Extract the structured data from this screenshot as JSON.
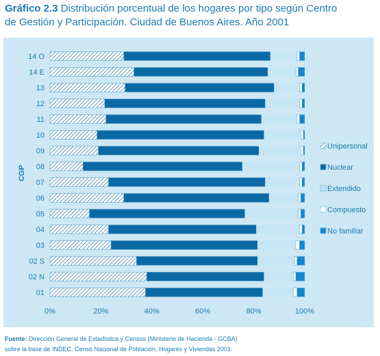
{
  "title": {
    "prefix": "Gráfico 2.3",
    "line1_rest": "Distribución porcentual de los hogares por tipo según Centro",
    "line2": "de Gestión y Participación. Ciudad de Buenos Aires. Año 2001"
  },
  "source": {
    "label": "Fuente:",
    "line1": "Dirección General de Estadística y Censos (Ministerio de Hacienda - GCBA)",
    "line2": "sobre la base de INDEC. Censo Nacional de Población, Hogares y Viviendas 2001."
  },
  "colors": {
    "text": "#1a7ab0",
    "panel": "#cde8f4",
    "unipersonal_stripe": "#1f6fa3",
    "nuclear": "#0b6aa6",
    "extendido": "#c6e6f5",
    "compuesto": "#ffffff",
    "no_familiar": "#1587d0"
  },
  "chart_data": {
    "type": "bar",
    "orientation": "horizontal",
    "stacked": true,
    "percent": true,
    "ylabel": "CGP",
    "xlabel": "",
    "xlim": [
      0,
      100
    ],
    "x_ticks": [
      "0%",
      "20%",
      "40%",
      "60%",
      "80%",
      "100%"
    ],
    "legend_position": "right",
    "categories": [
      "14 O",
      "14 E",
      "13",
      "12",
      "11",
      "10",
      "09",
      "08",
      "07",
      "06",
      "05",
      "04",
      "03",
      "02 S",
      "02 N",
      "01"
    ],
    "series": [
      {
        "name": "Unipersonal",
        "values": [
          29,
          33,
          29.5,
          21.5,
          22,
          18.5,
          19,
          13,
          23,
          29,
          15.5,
          23,
          24,
          34,
          38,
          37.5
        ]
      },
      {
        "name": "Nuclear",
        "values": [
          57.5,
          52.5,
          58.5,
          63,
          61,
          65.5,
          63,
          62.5,
          61.5,
          57,
          61,
          58,
          57.5,
          47.5,
          46,
          46
        ]
      },
      {
        "name": "Extendido",
        "values": [
          10.5,
          11,
          10,
          13.5,
          14,
          14.5,
          16.5,
          22.5,
          13.5,
          11.5,
          21,
          17,
          15,
          14.5,
          11.5,
          12
        ]
      },
      {
        "name": "Compuesto",
        "values": [
          1,
          1,
          1,
          1,
          1,
          1,
          1,
          1,
          1,
          1,
          1,
          1,
          1.5,
          1,
          1,
          1.5
        ]
      },
      {
        "name": "No familiar",
        "values": [
          2,
          2.5,
          1,
          1,
          2,
          0.5,
          0.5,
          1,
          1,
          1.5,
          1.5,
          1,
          2,
          3,
          3.5,
          3
        ]
      }
    ]
  }
}
